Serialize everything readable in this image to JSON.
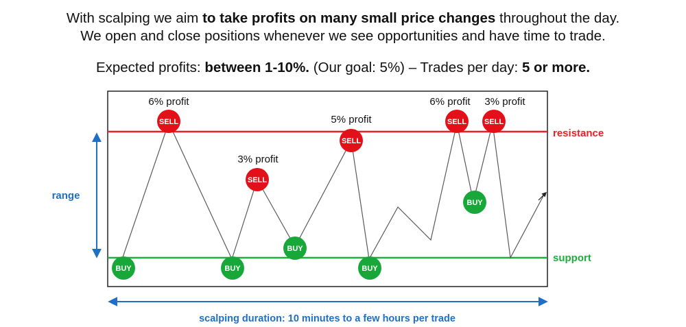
{
  "header": {
    "line1": {
      "pre": "With scalping we aim ",
      "bold": "to take profits on many small price changes",
      "post": " throughout the day."
    },
    "line2": "We open and close positions whenever we see opportunities and have time to trade.",
    "line3": {
      "p1": "Expected profits: ",
      "b1": "between 1-10%.",
      "p2": " (Our goal: 5%) – Trades per day: ",
      "b2": "5 or more."
    }
  },
  "diagram": {
    "levels": {
      "resistance_label": "resistance",
      "support_label": "support",
      "range_label": "range"
    },
    "duration_label": "scalping duration: 10 minutes to a few hours per trade",
    "markers": [
      {
        "type": "BUY"
      },
      {
        "type": "SELL",
        "profit": "6% profit"
      },
      {
        "type": "BUY"
      },
      {
        "type": "SELL",
        "profit": "3% profit"
      },
      {
        "type": "BUY"
      },
      {
        "type": "SELL",
        "profit": "5% profit"
      },
      {
        "type": "BUY"
      },
      {
        "type": "SELL",
        "profit": "6% profit"
      },
      {
        "type": "BUY"
      },
      {
        "type": "SELL",
        "profit": "3% profit"
      }
    ],
    "colors": {
      "resistance": "#e8202a",
      "support": "#1fad3c",
      "sell": "#e3101a",
      "buy": "#18a83a",
      "accent_blue": "#1f6fc6",
      "price_line": "#5a5a5a",
      "frame": "#222222"
    }
  }
}
